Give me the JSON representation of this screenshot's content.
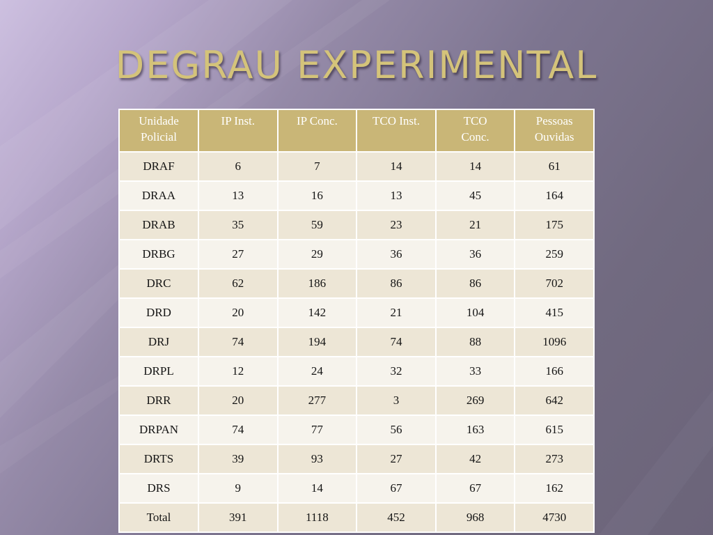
{
  "slide": {
    "title": "DEGRAU EXPERIMENTAL"
  },
  "table": {
    "headers": [
      [
        "Unidade",
        "Policial"
      ],
      [
        "IP Inst."
      ],
      [
        "IP Conc."
      ],
      [
        "TCO Inst."
      ],
      [
        "TCO",
        "Conc."
      ],
      [
        "Pessoas",
        "Ouvidas"
      ]
    ],
    "rows": [
      [
        "DRAF",
        "6",
        "7",
        "14",
        "14",
        "61"
      ],
      [
        "DRAA",
        "13",
        "16",
        "13",
        "45",
        "164"
      ],
      [
        "DRAB",
        "35",
        "59",
        "23",
        "21",
        "175"
      ],
      [
        "DRBG",
        "27",
        "29",
        "36",
        "36",
        "259"
      ],
      [
        "DRC",
        "62",
        "186",
        "86",
        "86",
        "702"
      ],
      [
        "DRD",
        "20",
        "142",
        "21",
        "104",
        "415"
      ],
      [
        "DRJ",
        "74",
        "194",
        "74",
        "88",
        "1096"
      ],
      [
        "DRPL",
        "12",
        "24",
        "32",
        "33",
        "166"
      ],
      [
        "DRR",
        "20",
        "277",
        "3",
        "269",
        "642"
      ],
      [
        "DRPAN",
        "74",
        "77",
        "56",
        "163",
        "615"
      ],
      [
        "DRTS",
        "39",
        "93",
        "27",
        "42",
        "273"
      ],
      [
        "DRS",
        "9",
        "14",
        "67",
        "67",
        "162"
      ],
      [
        "Total",
        "391",
        "1118",
        "452",
        "968",
        "4730"
      ]
    ]
  }
}
